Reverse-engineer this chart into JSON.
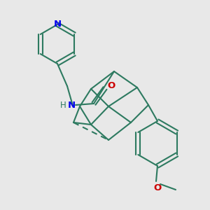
{
  "bg_color": "#e8e8e8",
  "bond_color": "#2d7a60",
  "nitrogen_color": "#0000ee",
  "oxygen_color": "#cc0000",
  "lw": 1.5,
  "figsize": [
    3.0,
    3.0
  ],
  "dpi": 100,
  "xlim": [
    0,
    300
  ],
  "ylim": [
    0,
    300
  ]
}
